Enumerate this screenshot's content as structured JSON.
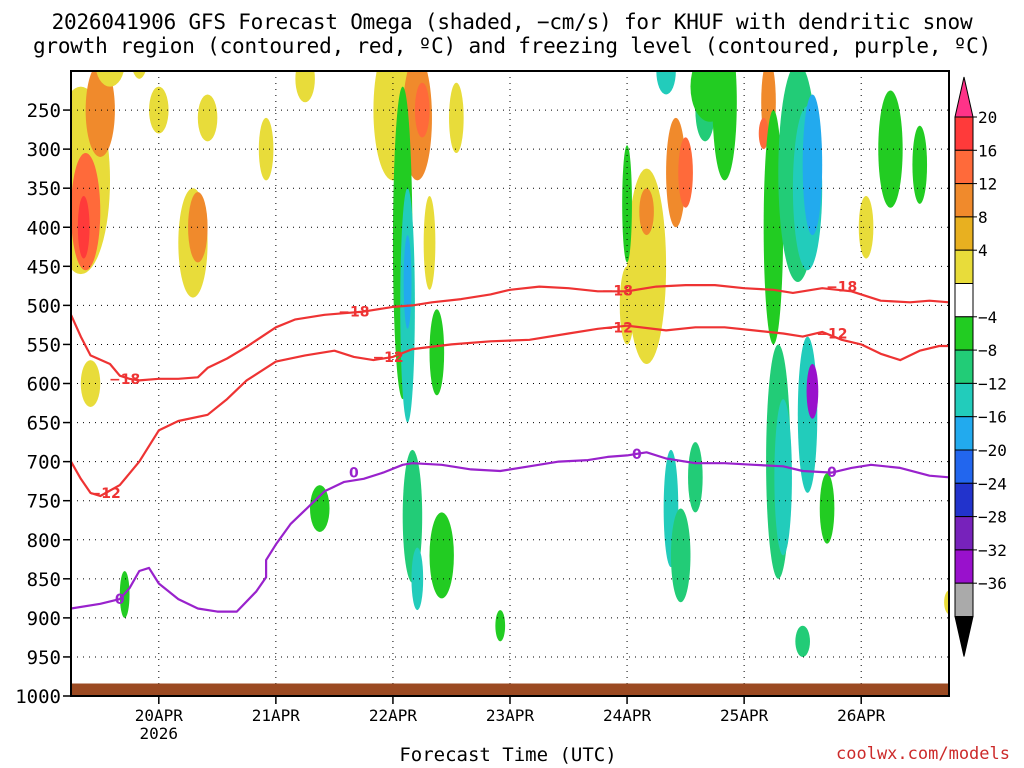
{
  "title_line1": "2026041906 GFS Forecast Omega (shaded, −cm/s) for KHUF with dendritic snow",
  "title_line2": "growth region (contoured, red, ºC) and freezing level (contoured, purple, ºC)",
  "credit": "coolwx.com/models",
  "chart_data": {
    "type": "heatmap",
    "title": "2026041906 GFS Forecast Omega (shaded, −cm/s) for KHUF",
    "xlabel": "Forecast Time (UTC)",
    "ylabel": "",
    "x_ticks": [
      {
        "hours": 18,
        "label": "20APR",
        "sub": "2026"
      },
      {
        "hours": 42,
        "label": "21APR",
        "sub": ""
      },
      {
        "hours": 66,
        "label": "22APR",
        "sub": ""
      },
      {
        "hours": 90,
        "label": "23APR",
        "sub": ""
      },
      {
        "hours": 114,
        "label": "24APR",
        "sub": ""
      },
      {
        "hours": 138,
        "label": "25APR",
        "sub": ""
      },
      {
        "hours": 162,
        "label": "26APR",
        "sub": ""
      }
    ],
    "xlim_hours": [
      0,
      180
    ],
    "y_ticks": [
      250,
      300,
      350,
      400,
      450,
      500,
      550,
      600,
      650,
      700,
      750,
      800,
      850,
      900,
      950,
      1000
    ],
    "ylim_hpa": [
      200,
      1000
    ],
    "colorbar": {
      "labels": [
        "20",
        "16",
        "12",
        "8",
        "4",
        "−4",
        "−8",
        "−12",
        "−16",
        "−20",
        "−24",
        "−28",
        "−32",
        "−36"
      ],
      "colors": [
        "#ff3388",
        "#ff3a3a",
        "#ff6a3a",
        "#f08a2c",
        "#e8b020",
        "#e8dc3a",
        "#ffffff",
        "#22cc22",
        "#22cc77",
        "#22ccbb",
        "#22aaee",
        "#2266ee",
        "#2233cc",
        "#7722bb",
        "#9911cc",
        "#aaaaaa",
        "#000000"
      ]
    },
    "contours": [
      {
        "name": "-18 ºC",
        "label": "−18",
        "color": "#ee3333",
        "points": [
          [
            0,
            512
          ],
          [
            2,
            540
          ],
          [
            4,
            564
          ],
          [
            8,
            575
          ],
          [
            10,
            590
          ],
          [
            12,
            594
          ],
          [
            14,
            596
          ],
          [
            18,
            594
          ],
          [
            22,
            594
          ],
          [
            26,
            592
          ],
          [
            28,
            580
          ],
          [
            32,
            568
          ],
          [
            36,
            553
          ],
          [
            42,
            528
          ],
          [
            46,
            518
          ],
          [
            52,
            512
          ],
          [
            56,
            510
          ],
          [
            60,
            508
          ],
          [
            66,
            502
          ],
          [
            70,
            500
          ],
          [
            74,
            496
          ],
          [
            80,
            492
          ],
          [
            86,
            486
          ],
          [
            90,
            480
          ],
          [
            96,
            476
          ],
          [
            102,
            478
          ],
          [
            108,
            482
          ],
          [
            114,
            482
          ],
          [
            120,
            476
          ],
          [
            126,
            474
          ],
          [
            132,
            474
          ],
          [
            138,
            478
          ],
          [
            144,
            480
          ],
          [
            148,
            484
          ],
          [
            154,
            478
          ],
          [
            160,
            482
          ],
          [
            166,
            494
          ],
          [
            172,
            496
          ],
          [
            176,
            494
          ],
          [
            180,
            496
          ]
        ]
      },
      {
        "name": "-12 ºC",
        "label": "−12",
        "color": "#ee3333",
        "points": [
          [
            0,
            700
          ],
          [
            2,
            722
          ],
          [
            4,
            740
          ],
          [
            6,
            744
          ],
          [
            10,
            730
          ],
          [
            14,
            700
          ],
          [
            18,
            660
          ],
          [
            22,
            648
          ],
          [
            28,
            640
          ],
          [
            32,
            620
          ],
          [
            36,
            596
          ],
          [
            42,
            572
          ],
          [
            48,
            564
          ],
          [
            54,
            558
          ],
          [
            58,
            566
          ],
          [
            62,
            570
          ],
          [
            66,
            566
          ],
          [
            70,
            556
          ],
          [
            78,
            550
          ],
          [
            86,
            546
          ],
          [
            94,
            544
          ],
          [
            102,
            536
          ],
          [
            108,
            530
          ],
          [
            114,
            526
          ],
          [
            122,
            532
          ],
          [
            128,
            528
          ],
          [
            134,
            528
          ],
          [
            140,
            532
          ],
          [
            146,
            536
          ],
          [
            150,
            540
          ],
          [
            154,
            534
          ],
          [
            158,
            544
          ],
          [
            162,
            550
          ],
          [
            166,
            562
          ],
          [
            170,
            570
          ],
          [
            174,
            558
          ],
          [
            178,
            552
          ],
          [
            180,
            552
          ]
        ]
      },
      {
        "name": "0 ºC",
        "label": "0",
        "color": "#9922cc",
        "points": [
          [
            0,
            888
          ],
          [
            6,
            882
          ],
          [
            10,
            876
          ],
          [
            12,
            862
          ],
          [
            14,
            840
          ],
          [
            16,
            836
          ],
          [
            18,
            856
          ],
          [
            22,
            876
          ],
          [
            26,
            888
          ],
          [
            30,
            892
          ],
          [
            34,
            892
          ],
          [
            38,
            866
          ],
          [
            40,
            848
          ],
          [
            40,
            826
          ],
          [
            42,
            806
          ],
          [
            45,
            780
          ],
          [
            48,
            762
          ],
          [
            52,
            738
          ],
          [
            56,
            726
          ],
          [
            60,
            722
          ],
          [
            64,
            714
          ],
          [
            68,
            704
          ],
          [
            70,
            702
          ],
          [
            76,
            704
          ],
          [
            82,
            710
          ],
          [
            88,
            712
          ],
          [
            94,
            706
          ],
          [
            100,
            700
          ],
          [
            106,
            698
          ],
          [
            110,
            694
          ],
          [
            114,
            692
          ],
          [
            118,
            688
          ],
          [
            122,
            696
          ],
          [
            128,
            702
          ],
          [
            134,
            702
          ],
          [
            140,
            704
          ],
          [
            146,
            706
          ],
          [
            150,
            712
          ],
          [
            156,
            714
          ],
          [
            160,
            708
          ],
          [
            164,
            704
          ],
          [
            170,
            708
          ],
          [
            176,
            718
          ],
          [
            180,
            720
          ]
        ]
      }
    ],
    "contour_labels": [
      {
        "label": "−18",
        "h": 11,
        "p": 594,
        "color": "#ee3333"
      },
      {
        "label": "−18",
        "h": 58,
        "p": 508,
        "color": "#ee3333"
      },
      {
        "label": "−18",
        "h": 112,
        "p": 481,
        "color": "#ee3333"
      },
      {
        "label": "−18",
        "h": 158,
        "p": 476,
        "color": "#ee3333"
      },
      {
        "label": "−12",
        "h": 7,
        "p": 740,
        "color": "#ee3333"
      },
      {
        "label": "−12",
        "h": 65,
        "p": 566,
        "color": "#ee3333"
      },
      {
        "label": "−12",
        "h": 112,
        "p": 528,
        "color": "#ee3333"
      },
      {
        "label": "−12",
        "h": 156,
        "p": 536,
        "color": "#ee3333"
      },
      {
        "label": "0",
        "h": 10,
        "p": 876,
        "color": "#9922cc"
      },
      {
        "label": "0",
        "h": 58,
        "p": 714,
        "color": "#9922cc"
      },
      {
        "label": "0",
        "h": 116,
        "p": 690,
        "color": "#9922cc"
      },
      {
        "label": "0",
        "h": 156,
        "p": 713,
        "color": "#9922cc"
      }
    ],
    "omega_blobs": [
      {
        "h": 2,
        "p": 340,
        "dh": 6,
        "dp": 240,
        "v": 6
      },
      {
        "h": 3,
        "p": 380,
        "dh": 3,
        "dp": 150,
        "v": 12
      },
      {
        "h": 2.6,
        "p": 400,
        "dh": 1.2,
        "dp": 80,
        "v": 16
      },
      {
        "h": 6,
        "p": 250,
        "dh": 3,
        "dp": 120,
        "v": 9
      },
      {
        "h": 4,
        "p": 600,
        "dh": 2,
        "dp": 60,
        "v": 6
      },
      {
        "h": 8,
        "p": 190,
        "dh": 3,
        "dp": 60,
        "v": 7
      },
      {
        "h": 14,
        "p": 170,
        "dh": 2,
        "dp": 80,
        "v": 6
      },
      {
        "h": 18,
        "p": 250,
        "dh": 2,
        "dp": 60,
        "v": 6
      },
      {
        "h": 25,
        "p": 420,
        "dh": 3,
        "dp": 140,
        "v": 7
      },
      {
        "h": 26,
        "p": 400,
        "dh": 2,
        "dp": 90,
        "v": 10
      },
      {
        "h": 28,
        "p": 260,
        "dh": 2,
        "dp": 60,
        "v": 6
      },
      {
        "h": 40,
        "p": 300,
        "dh": 1.5,
        "dp": 80,
        "v": 5
      },
      {
        "h": 48,
        "p": 210,
        "dh": 2,
        "dp": 60,
        "v": 5
      },
      {
        "h": 66,
        "p": 250,
        "dh": 4,
        "dp": 180,
        "v": 6
      },
      {
        "h": 71,
        "p": 260,
        "dh": 3,
        "dp": 160,
        "v": 9
      },
      {
        "h": 72,
        "p": 250,
        "dh": 1.5,
        "dp": 70,
        "v": 13
      },
      {
        "h": 73.5,
        "p": 420,
        "dh": 1.2,
        "dp": 120,
        "v": 5
      },
      {
        "h": 79,
        "p": 260,
        "dh": 1.5,
        "dp": 90,
        "v": 5
      },
      {
        "h": 114,
        "p": 500,
        "dh": 1.5,
        "dp": 100,
        "v": 6
      },
      {
        "h": 118,
        "p": 450,
        "dh": 4,
        "dp": 250,
        "v": 7
      },
      {
        "h": 118,
        "p": 380,
        "dh": 1.5,
        "dp": 60,
        "v": 11
      },
      {
        "h": 124,
        "p": 330,
        "dh": 2,
        "dp": 140,
        "v": 8
      },
      {
        "h": 126,
        "p": 330,
        "dh": 1.5,
        "dp": 90,
        "v": 12
      },
      {
        "h": 132,
        "p": 200,
        "dh": 1.5,
        "dp": 80,
        "v": 6
      },
      {
        "h": 143,
        "p": 240,
        "dh": 1.5,
        "dp": 110,
        "v": 9
      },
      {
        "h": 142,
        "p": 280,
        "dh": 1,
        "dp": 40,
        "v": 13
      },
      {
        "h": 163,
        "p": 400,
        "dh": 1.5,
        "dp": 80,
        "v": 6
      },
      {
        "h": 146,
        "p": 800,
        "dh": 1,
        "dp": 30,
        "v": 5
      },
      {
        "h": 180,
        "p": 880,
        "dh": 1,
        "dp": 30,
        "v": 5
      },
      {
        "h": 68,
        "p": 420,
        "dh": 2,
        "dp": 400,
        "v": -6
      },
      {
        "h": 69,
        "p": 500,
        "dh": 1.5,
        "dp": 300,
        "v": -12
      },
      {
        "h": 69,
        "p": 470,
        "dh": 0.8,
        "dp": 120,
        "v": -18
      },
      {
        "h": 70,
        "p": 770,
        "dh": 2,
        "dp": 170,
        "v": -9
      },
      {
        "h": 71,
        "p": 850,
        "dh": 1.2,
        "dp": 80,
        "v": -15
      },
      {
        "h": 75,
        "p": 560,
        "dh": 1.5,
        "dp": 110,
        "v": -7
      },
      {
        "h": 76,
        "p": 820,
        "dh": 2.5,
        "dp": 110,
        "v": -7
      },
      {
        "h": 51,
        "p": 760,
        "dh": 2,
        "dp": 60,
        "v": -6
      },
      {
        "h": 88,
        "p": 910,
        "dh": 1,
        "dp": 40,
        "v": -7
      },
      {
        "h": 114,
        "p": 370,
        "dh": 1,
        "dp": 150,
        "v": -6
      },
      {
        "h": 122,
        "p": 200,
        "dh": 2,
        "dp": 60,
        "v": -12
      },
      {
        "h": 123,
        "p": 760,
        "dh": 1.5,
        "dp": 150,
        "v": -13
      },
      {
        "h": 125,
        "p": 820,
        "dh": 2,
        "dp": 120,
        "v": -9
      },
      {
        "h": 130,
        "p": 250,
        "dh": 2,
        "dp": 80,
        "v": -8
      },
      {
        "h": 131,
        "p": 220,
        "dh": 4,
        "dp": 90,
        "v": -6
      },
      {
        "h": 128,
        "p": 720,
        "dh": 1.5,
        "dp": 90,
        "v": -8
      },
      {
        "h": 134,
        "p": 240,
        "dh": 2.5,
        "dp": 200,
        "v": -6
      },
      {
        "h": 144,
        "p": 400,
        "dh": 2,
        "dp": 300,
        "v": -7
      },
      {
        "h": 149,
        "p": 330,
        "dh": 4,
        "dp": 280,
        "v": -8
      },
      {
        "h": 151,
        "p": 350,
        "dh": 3,
        "dp": 210,
        "v": -12
      },
      {
        "h": 152,
        "p": 320,
        "dh": 2,
        "dp": 180,
        "v": -16
      },
      {
        "h": 145,
        "p": 700,
        "dh": 2.5,
        "dp": 300,
        "v": -9
      },
      {
        "h": 146,
        "p": 720,
        "dh": 1.8,
        "dp": 200,
        "v": -14
      },
      {
        "h": 151,
        "p": 640,
        "dh": 2,
        "dp": 200,
        "v": -15
      },
      {
        "h": 152,
        "p": 610,
        "dh": 1.2,
        "dp": 70,
        "v": -28
      },
      {
        "h": 150,
        "p": 930,
        "dh": 1.5,
        "dp": 40,
        "v": -10
      },
      {
        "h": 155,
        "p": 760,
        "dh": 1.5,
        "dp": 90,
        "v": -6
      },
      {
        "h": 168,
        "p": 300,
        "dh": 2.5,
        "dp": 150,
        "v": -6
      },
      {
        "h": 174,
        "p": 320,
        "dh": 1.5,
        "dp": 100,
        "v": -6
      },
      {
        "h": 11,
        "p": 870,
        "dh": 1,
        "dp": 60,
        "v": -6
      }
    ]
  }
}
